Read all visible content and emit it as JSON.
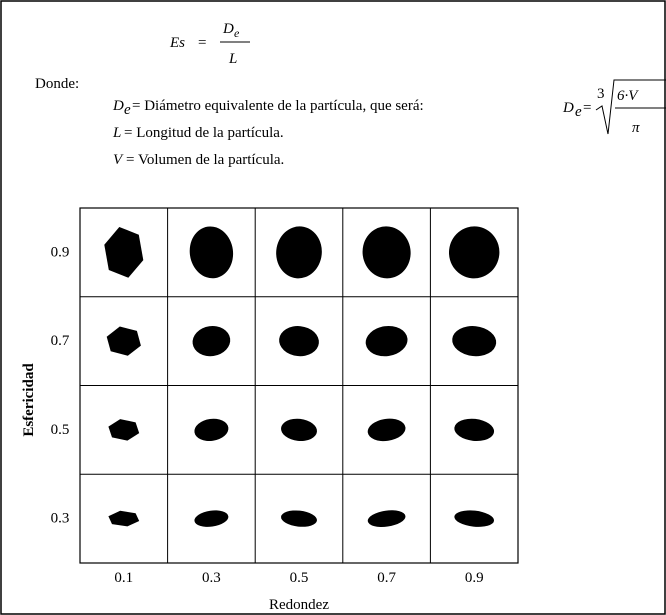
{
  "formula": {
    "lhs": "Es",
    "equals": "=",
    "numerator": "D",
    "numerator_sub": "e",
    "denominator": "L"
  },
  "where_label": "Donde:",
  "definitions": [
    {
      "symbol": "D",
      "sub": "e",
      "text": "= Diámetro equivalente de la partícula, que será:"
    },
    {
      "symbol": "L",
      "text": "= Longitud de la partícula."
    },
    {
      "symbol": "V",
      "text": "= Volumen de la partícula."
    }
  ],
  "equivalent_formula": {
    "lhs": "D",
    "sub": "e",
    "equals": "=",
    "root_index": "3",
    "numerator": "6·V",
    "denominator": "π"
  },
  "grid": {
    "y_title": "Esfericidad",
    "x_title": "Redondez",
    "rows": [
      "0.9",
      "0.7",
      "0.5",
      "0.3"
    ],
    "columns": [
      "0.1",
      "0.3",
      "0.5",
      "0.7",
      "0.9"
    ]
  }
}
